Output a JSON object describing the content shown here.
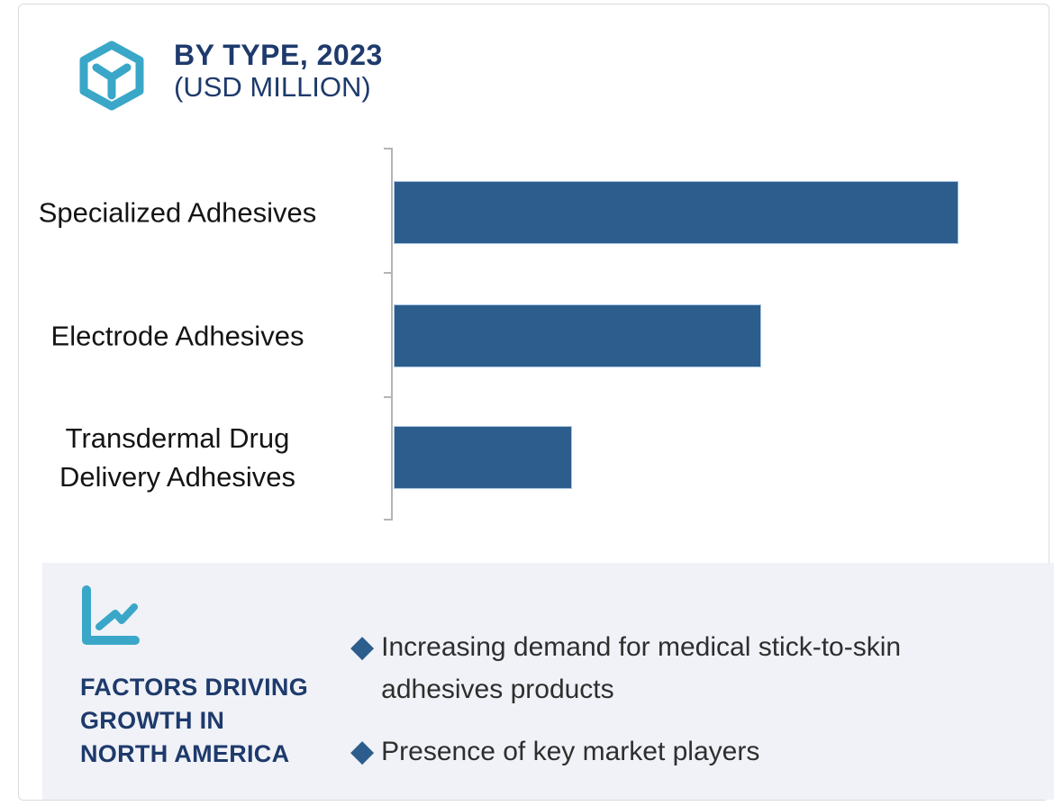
{
  "header": {
    "title_line1": "BY TYPE, 2023",
    "title_line2": "(USD MILLION)",
    "icon": "hexagon-cube-icon"
  },
  "chart_data": {
    "type": "bar",
    "orientation": "horizontal",
    "title": "BY TYPE, 2023 (USD MILLION)",
    "categories": [
      "Specialized Adhesives",
      "Electrode Adhesives",
      "Transdermal Drug Delivery Adhesives"
    ],
    "values": [
      100,
      65,
      31.5
    ],
    "value_scale": "relative_percent_of_longest_bar; no numeric axis or data labels visible",
    "xlabel": "",
    "ylabel": "",
    "grid": false,
    "legend": false,
    "bar_color": "#2c5d8d",
    "axis_ticks": 4
  },
  "factors_panel": {
    "icon": "line-chart-icon",
    "title_lines": [
      "FACTORS DRIVING",
      "GROWTH IN",
      "NORTH AMERICA"
    ],
    "bullet_glyph": "◆",
    "bullets": [
      "Increasing demand for medical stick-to-skin adhesives products",
      "Presence of key market players"
    ]
  },
  "colors": {
    "accent_teal": "#3aa7c8",
    "navy": "#1e3a6c",
    "bar_blue": "#2c5d8d",
    "bar_stroke": "#adc9e5",
    "panel_bg": "#f0f2f7",
    "frame_border": "#dbdbdb",
    "axis_gray": "#b5b5b5",
    "label_black": "#141414",
    "body_text": "#2e2e2e"
  }
}
